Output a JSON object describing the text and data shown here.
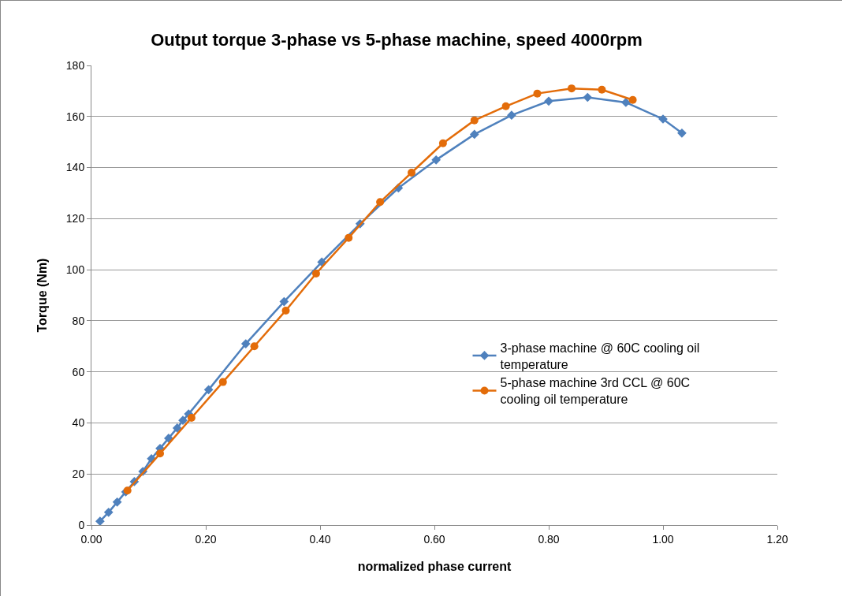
{
  "chart_data": {
    "type": "line",
    "title": "Output torque 3-phase vs 5-phase machine, speed 4000rpm",
    "xlabel": "normalized phase current",
    "ylabel": "Torque (Nm)",
    "xlim": [
      0,
      1.2
    ],
    "xticks": [
      {
        "value": 0,
        "label": "0.00"
      },
      {
        "value": 0.2,
        "label": "0.20"
      },
      {
        "value": 0.4,
        "label": "0.40"
      },
      {
        "value": 0.6,
        "label": "0.60"
      },
      {
        "value": 0.8,
        "label": "0.80"
      },
      {
        "value": 1,
        "label": "1.00"
      },
      {
        "value": 1.2,
        "label": "1.20"
      }
    ],
    "ylim": [
      0,
      180
    ],
    "yticks": [
      0,
      20,
      40,
      60,
      80,
      100,
      120,
      140,
      160,
      180
    ],
    "grid": "y",
    "legend": "right",
    "series": [
      {
        "name": "3-phase machine @ 60C cooling oil temperature",
        "color": "#4f81bd",
        "marker": "diamond",
        "x": [
          0.015,
          0.03,
          0.045,
          0.06,
          0.075,
          0.09,
          0.105,
          0.12,
          0.135,
          0.15,
          0.16,
          0.17,
          0.205,
          0.27,
          0.337,
          0.403,
          0.47,
          0.537,
          0.603,
          0.67,
          0.735,
          0.8,
          0.868,
          0.935,
          1.0,
          1.033
        ],
        "values": [
          1.5,
          5,
          9,
          13,
          17,
          21,
          26,
          30,
          34,
          38,
          41,
          43.5,
          53,
          71,
          87.5,
          103,
          118,
          132,
          143,
          153,
          160.5,
          166,
          167.5,
          165.5,
          159,
          153.5
        ]
      },
      {
        "name": "5-phase machine 3rd CCL @ 60C cooling oil temperature",
        "color": "#e36c09",
        "marker": "circle",
        "x": [
          0.063,
          0.12,
          0.175,
          0.23,
          0.285,
          0.34,
          0.393,
          0.45,
          0.505,
          0.56,
          0.615,
          0.67,
          0.725,
          0.78,
          0.84,
          0.893,
          0.947
        ],
        "values": [
          13.5,
          28,
          42,
          56,
          70,
          84,
          98.5,
          112.5,
          126.5,
          138,
          149.5,
          158.5,
          164,
          169,
          171,
          170.5,
          166.5
        ]
      }
    ]
  }
}
